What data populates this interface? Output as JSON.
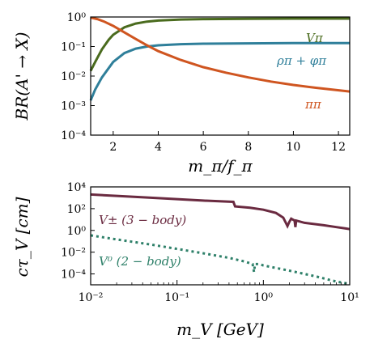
{
  "chart_data": [
    {
      "type": "line",
      "xlabel": "m_π/f_π",
      "ylabel": "BR(A' → X)",
      "xlim": [
        1.0,
        12.5
      ],
      "ylim": [
        0.0001,
        1
      ],
      "yscale": "log",
      "x_ticks": [
        "2",
        "4",
        "6",
        "8",
        "10",
        "12"
      ],
      "y_ticks": [
        "10⁰",
        "10⁻¹",
        "10⁻²",
        "10⁻³",
        "10⁻⁴"
      ],
      "grid": false,
      "series": [
        {
          "name": "Vπ",
          "color": "#4a6b1e",
          "x": [
            1.0,
            1.2,
            1.5,
            1.8,
            2.0,
            2.5,
            3.0,
            3.5,
            4.0,
            5.0,
            6.0,
            8.0,
            10.0,
            12.5
          ],
          "y": [
            0.015,
            0.03,
            0.08,
            0.17,
            0.25,
            0.45,
            0.6,
            0.7,
            0.76,
            0.82,
            0.85,
            0.87,
            0.88,
            0.88
          ]
        },
        {
          "name": "ρπ + φπ",
          "color": "#2f7f9a",
          "x": [
            1.0,
            1.2,
            1.5,
            2.0,
            2.5,
            3.0,
            3.5,
            4.0,
            5.0,
            6.0,
            8.0,
            10.0,
            12.5
          ],
          "y": [
            0.0015,
            0.0035,
            0.009,
            0.03,
            0.06,
            0.085,
            0.1,
            0.11,
            0.12,
            0.125,
            0.128,
            0.13,
            0.13
          ]
        },
        {
          "name": "ππ",
          "color": "#cf5520",
          "x": [
            1.0,
            1.3,
            1.6,
            2.0,
            2.5,
            3.0,
            3.5,
            4.0,
            5.0,
            6.0,
            7.0,
            8.0,
            9.0,
            10.0,
            11.0,
            12.5
          ],
          "y": [
            0.95,
            0.85,
            0.7,
            0.5,
            0.3,
            0.18,
            0.11,
            0.07,
            0.035,
            0.02,
            0.013,
            0.009,
            0.0065,
            0.005,
            0.004,
            0.003
          ]
        }
      ]
    },
    {
      "type": "line",
      "xlabel": "m_V [GeV]",
      "ylabel": "cτ_V [cm]",
      "xlim": [
        0.01,
        10
      ],
      "ylim": [
        1e-05,
        10000
      ],
      "xscale": "log",
      "yscale": "log",
      "x_ticks": [
        "10⁻²",
        "10⁻¹",
        "10⁰",
        "10¹"
      ],
      "y_ticks": [
        "10⁴",
        "10²",
        "10⁰",
        "10⁻²",
        "10⁻⁴"
      ],
      "grid": false,
      "series": [
        {
          "name": "V± (3 − body)",
          "color": "#6a2a40",
          "style": "solid",
          "x": [
            0.01,
            0.02,
            0.05,
            0.1,
            0.2,
            0.45,
            0.47,
            0.7,
            1.0,
            1.4,
            1.7,
            1.9,
            2.0,
            2.1,
            2.3,
            2.35,
            2.4,
            3.0,
            5.0,
            7.0,
            9.0,
            10.0
          ],
          "y": [
            2000,
            1500,
            1000,
            750,
            550,
            420,
            160,
            120,
            80,
            40,
            15,
            2.5,
            6,
            12,
            8,
            2.0,
            8,
            5,
            3,
            2,
            1.5,
            1.3
          ]
        },
        {
          "name": "V⁰ (2 − body)",
          "color": "#2e8069",
          "style": "dotted",
          "x": [
            0.01,
            0.02,
            0.05,
            0.1,
            0.2,
            0.4,
            0.6,
            0.75,
            0.78,
            0.8,
            0.9,
            1.0,
            2.0,
            4.0,
            7.0,
            10.0
          ],
          "y": [
            0.35,
            0.15,
            0.05,
            0.02,
            0.008,
            0.003,
            0.0014,
            0.0008,
            0.00015,
            0.0008,
            0.0008,
            0.0006,
            0.0002,
            6e-05,
            2e-05,
            1.2e-05
          ]
        }
      ]
    }
  ],
  "annotations": {
    "top_vpi": "Vπ",
    "top_rho": "ρπ + φπ",
    "top_pipi": "ππ",
    "bot_vpm": "V± (3 − body)",
    "bot_v0": "V⁰ (2 − body)"
  }
}
